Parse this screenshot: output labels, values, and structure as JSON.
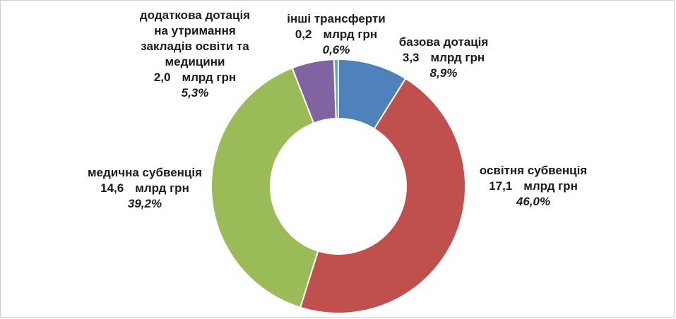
{
  "chart_data": {
    "type": "pie",
    "donut": true,
    "slices": [
      {
        "name": "базова дотація",
        "value": 3.3,
        "unit": "млрд грн",
        "percent": "8,9%",
        "color": "#4f81bd"
      },
      {
        "name": "освітня субвенція",
        "value": 17.1,
        "unit": "млрд грн",
        "percent": "46,0%",
        "color": "#c0504d"
      },
      {
        "name": "медична субвенція",
        "value": 14.6,
        "unit": "млрд грн",
        "percent": "39,2%",
        "color": "#9bbb59"
      },
      {
        "name": "додаткова дотація на утримання закладів освіти та медицини",
        "value": 2.0,
        "unit": "млрд грн",
        "percent": "5,3%",
        "color": "#8064a2"
      },
      {
        "name": "інші трансферти",
        "value": 0.2,
        "unit": "млрд грн",
        "percent": "0,6%",
        "color": "#4bacc6"
      }
    ]
  },
  "labels": {
    "bazova": {
      "line1": "базова дотація",
      "num": "3,3",
      "unit": "млрд грн",
      "pct": "8,9%"
    },
    "osvitnia": {
      "line1": "освітня субвенція",
      "num": "17,1",
      "unit": "млрд грн",
      "pct": "46,0%"
    },
    "medychna": {
      "line1": "медична субвенція",
      "num": "14,6",
      "unit": "млрд грн",
      "pct": "39,2%"
    },
    "dodatkova": {
      "line1": "додаткова дотація",
      "line2": "на утримання",
      "line3": "закладів освіти та",
      "line4": "медицини",
      "num": "2,0",
      "unit": "млрд грн",
      "pct": "5,3%"
    },
    "inshi": {
      "line1": "інші трансферти",
      "num": "0,2",
      "unit": "млрд грн",
      "pct": "0,6%"
    }
  }
}
